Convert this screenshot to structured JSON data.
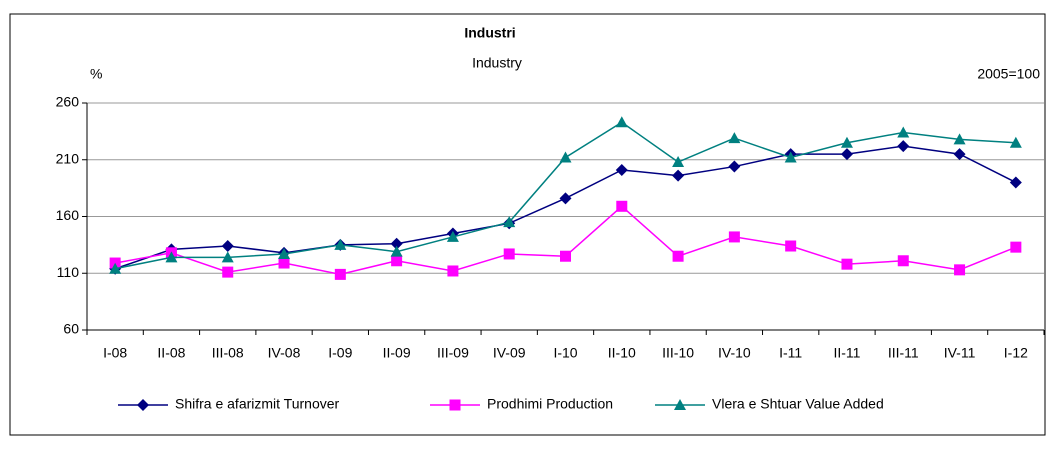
{
  "chart_data": {
    "type": "line",
    "title": "Industri",
    "subtitle": "Industry",
    "y_label": "%",
    "annotation": "2005=100",
    "categories": [
      "I-08",
      "II-08",
      "III-08",
      "IV-08",
      "I-09",
      "II-09",
      "III-09",
      "IV-09",
      "I-10",
      "II-10",
      "III-10",
      "IV-10",
      "I-11",
      "II-11",
      "III-11",
      "IV-11",
      "I-12"
    ],
    "series": [
      {
        "name": "Shifra e afarizmit Turnover",
        "color": "#000080",
        "marker": "diamond",
        "values": [
          114,
          131,
          134,
          128,
          135,
          136,
          145,
          154,
          176,
          201,
          196,
          204,
          215,
          215,
          222,
          215,
          190
        ]
      },
      {
        "name": "Prodhimi Production",
        "color": "#ff00ff",
        "marker": "square",
        "values": [
          119,
          128,
          111,
          119,
          109,
          121,
          112,
          127,
          125,
          169,
          125,
          142,
          134,
          118,
          121,
          113,
          133
        ]
      },
      {
        "name": "Vlera e Shtuar Value Added",
        "color": "#008080",
        "marker": "triangle",
        "values": [
          114,
          124,
          124,
          127,
          135,
          129,
          142,
          155,
          212,
          243,
          208,
          229,
          212,
          225,
          234,
          228,
          225
        ]
      }
    ],
    "ylim": [
      60,
      260
    ],
    "yticks": [
      60,
      110,
      160,
      210,
      260
    ],
    "grid": true,
    "legend": "bottom"
  }
}
